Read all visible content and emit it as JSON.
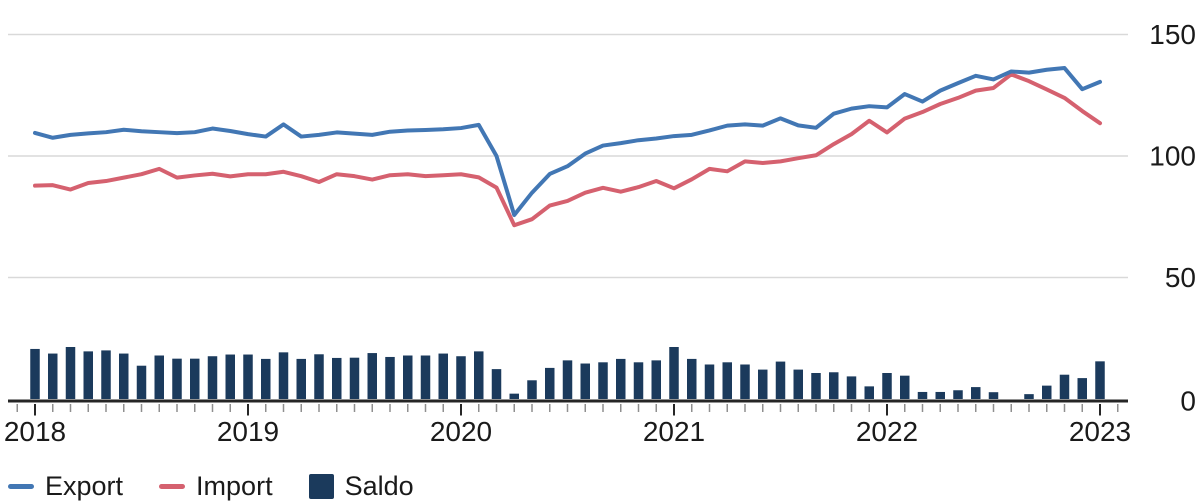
{
  "chart_data": {
    "type": "line+bar combo",
    "title": "",
    "x_frequency": "monthly",
    "x_start": "2018-01",
    "x_end": "2023-01",
    "x_tick_labels": [
      "2018",
      "2019",
      "2020",
      "2021",
      "2022",
      "2023"
    ],
    "y_ticks": [
      150,
      100,
      50,
      0
    ],
    "ylim": [
      0,
      155
    ],
    "grid": "horizontal",
    "legend_position": "bottom-left",
    "series": [
      {
        "name": "Export",
        "type": "line",
        "color": "#4277b4",
        "values": [
          109.5,
          107.5,
          108.7,
          109.3,
          109.8,
          110.8,
          110.2,
          109.8,
          109.4,
          109.8,
          111.3,
          110.3,
          109.0,
          108.0,
          113.0,
          108.0,
          108.7,
          109.7,
          109.2,
          108.7,
          110.0,
          110.5,
          110.7,
          111.0,
          111.5,
          112.8,
          100.0,
          75.7,
          84.9,
          92.6,
          95.8,
          101.0,
          104.3,
          105.3,
          106.5,
          107.2,
          108.2,
          108.7,
          110.5,
          112.5,
          113.0,
          112.5,
          115.5,
          112.6,
          111.6,
          117.4,
          119.5,
          120.5,
          120.0,
          125.5,
          122.4,
          126.9,
          130.0,
          133.0,
          131.5,
          134.8,
          134.3,
          135.5,
          136.2,
          127.5,
          130.5
        ]
      },
      {
        "name": "Import",
        "type": "line",
        "color": "#d5616f",
        "values": [
          87.8,
          88.0,
          86.2,
          88.9,
          89.7,
          91.1,
          92.5,
          94.7,
          91.1,
          92.0,
          92.7,
          91.6,
          92.5,
          92.5,
          93.5,
          91.7,
          89.3,
          92.5,
          91.7,
          90.3,
          92.1,
          92.5,
          91.7,
          92.1,
          92.5,
          91.2,
          87.0,
          71.5,
          74.0,
          79.6,
          81.5,
          84.9,
          86.9,
          85.3,
          87.2,
          89.7,
          86.7,
          90.4,
          94.7,
          93.7,
          97.8,
          97.1,
          97.8,
          99.1,
          100.3,
          104.9,
          109.0,
          114.5,
          109.7,
          115.4,
          118.1,
          121.4,
          123.9,
          126.9,
          128.0,
          133.6,
          130.8,
          127.4,
          123.9,
          118.5,
          113.5
        ]
      },
      {
        "name": "Saldo",
        "type": "bar",
        "color": "#1b3a5c",
        "values": [
          20.6,
          18.7,
          21.4,
          19.6,
          20.0,
          18.7,
          13.7,
          17.9,
          16.6,
          16.6,
          17.6,
          18.3,
          18.3,
          16.5,
          19.2,
          16.5,
          18.4,
          16.9,
          17.0,
          18.9,
          17.3,
          17.9,
          17.9,
          18.7,
          17.6,
          19.6,
          12.3,
          2.2,
          7.7,
          12.8,
          15.9,
          14.6,
          15.1,
          16.5,
          15.1,
          15.9,
          21.4,
          16.5,
          14.2,
          15.1,
          14.2,
          12.1,
          15.4,
          12.1,
          10.7,
          11.0,
          9.3,
          5.2,
          10.7,
          9.6,
          2.9,
          2.9,
          3.6,
          4.9,
          2.8,
          0.0,
          2.0,
          5.5,
          10.0,
          8.6,
          15.5
        ]
      }
    ]
  },
  "colors": {
    "background": "#ffffff",
    "gridline": "#d9d9d9",
    "axis_line": "#262626",
    "minor_tick": "#8f8f8f",
    "major_tick": "#262626",
    "label": "#1a1a1a"
  },
  "legend": {
    "export_label": "Export",
    "import_label": "Import",
    "saldo_label": "Saldo"
  }
}
